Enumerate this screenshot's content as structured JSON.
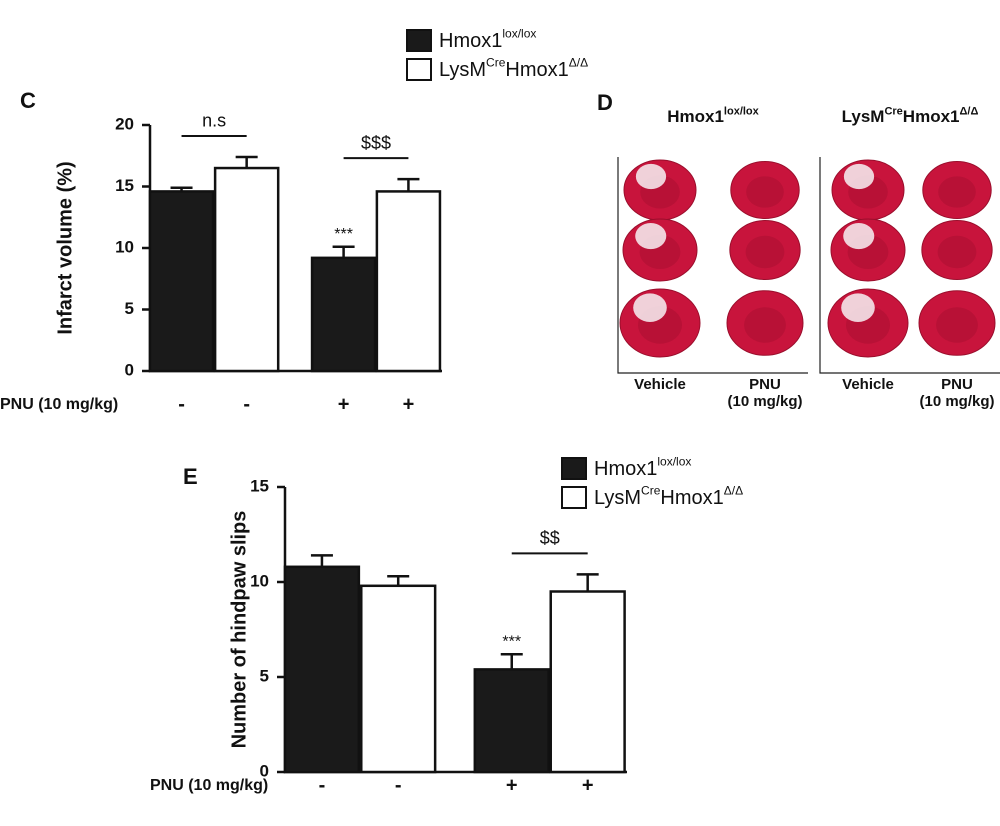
{
  "chart_data": [
    {
      "type": "bar",
      "panel_label": "C",
      "ylabel": "Infarct volume (%)",
      "xlabel": "PNU (10 mg/kg)",
      "categories": [
        "-",
        "-",
        "+",
        "+"
      ],
      "series": [
        {
          "name": [
            {
              "text": "Hmox1"
            },
            {
              "sup": "lox/lox"
            }
          ],
          "color": "#1a1a1a",
          "values": [
            14.6,
            null,
            9.2,
            null
          ],
          "errors": [
            0.3,
            null,
            0.9,
            null
          ]
        },
        {
          "name": [
            {
              "text": "LysM"
            },
            {
              "sup": "Cre"
            },
            {
              "text": "Hmox1"
            },
            {
              "sup": "Δ/Δ"
            }
          ],
          "color": "#ffffff",
          "values": [
            null,
            16.5,
            null,
            14.6
          ],
          "errors": [
            null,
            0.9,
            null,
            1.0
          ]
        }
      ],
      "annotations": [
        null,
        null,
        "***",
        null
      ],
      "brackets": [
        "n.s",
        null,
        "$$$",
        null
      ],
      "ylim": [
        0,
        20
      ],
      "yticks": [
        0,
        5,
        10,
        15,
        20
      ],
      "legend": "top"
    },
    {
      "type": "bar",
      "panel_label": "E",
      "ylabel": "Number of hindpaw slips",
      "xlabel": "PNU (10 mg/kg)",
      "categories": [
        "-",
        "-",
        "+",
        "+"
      ],
      "series": [
        {
          "name": [
            {
              "text": "Hmox1"
            },
            {
              "sup": "lox/lox"
            }
          ],
          "color": "#1a1a1a",
          "values": [
            10.8,
            null,
            5.4,
            null
          ],
          "errors": [
            0.6,
            null,
            0.8,
            null
          ]
        },
        {
          "name": [
            {
              "text": "LysM"
            },
            {
              "sup": "Cre"
            },
            {
              "text": "Hmox1"
            },
            {
              "sup": "Δ/Δ"
            }
          ],
          "color": "#ffffff",
          "values": [
            null,
            9.8,
            null,
            9.5
          ],
          "errors": [
            null,
            0.5,
            null,
            0.9
          ]
        }
      ],
      "annotations": [
        null,
        null,
        "***",
        null
      ],
      "brackets": [
        null,
        null,
        "$$",
        null
      ],
      "ylim": [
        0,
        15
      ],
      "yticks": [
        0,
        5,
        10,
        15
      ],
      "legend": "top-right"
    }
  ],
  "image_panel": {
    "label": "D",
    "groups": [
      {
        "title": [
          {
            "text": "Hmox1"
          },
          {
            "sup": "lox/lox"
          }
        ],
        "columns": [
          [
            "Vehicle"
          ],
          [
            "PNU",
            "(10 mg/kg)"
          ]
        ]
      },
      {
        "title": [
          {
            "text": "LysM"
          },
          {
            "sup": "Cre"
          },
          {
            "text": "Hmox1"
          },
          {
            "sup": "Δ/Δ"
          }
        ],
        "columns": [
          [
            "Vehicle"
          ],
          [
            "PNU",
            "(10 mg/kg)"
          ]
        ]
      }
    ]
  }
}
